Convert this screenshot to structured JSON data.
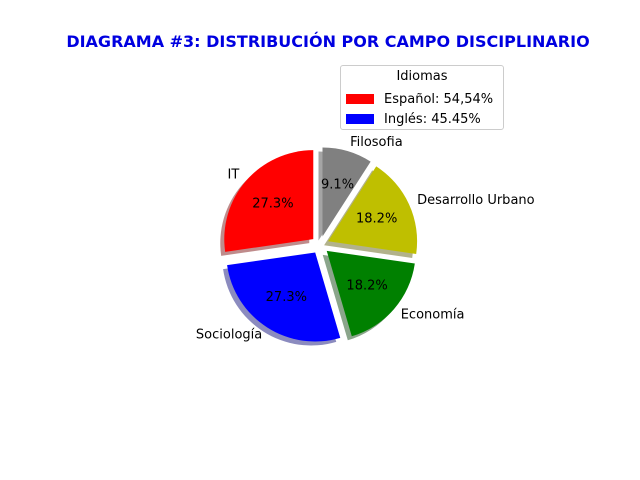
{
  "chart_data": {
    "type": "pie",
    "title": "DIAGRAMA #3: DISTRIBUCIÓN POR CAMPO DISCIPLINARIO",
    "title_color": "#0000e0",
    "start_angle_deg": 90,
    "direction": "counterclockwise",
    "shadow": true,
    "slices": [
      {
        "label": "IT",
        "value": 27.3,
        "pct_label": "27.3%",
        "color": "#ff0000",
        "explode": 0.1
      },
      {
        "label": "Sociología",
        "value": 27.3,
        "pct_label": "27.3%",
        "color": "#0000ff",
        "explode": 0.1
      },
      {
        "label": "Economía",
        "value": 18.2,
        "pct_label": "18.2%",
        "color": "#008000",
        "explode": 0.1
      },
      {
        "label": "Desarrollo Urbano",
        "value": 18.2,
        "pct_label": "18.2%",
        "color": "#bfbf00",
        "explode": 0.1
      },
      {
        "label": "Filosofia",
        "value": 9.1,
        "pct_label": "9.1%",
        "color": "#808080",
        "explode": 0.1
      }
    ],
    "legend": {
      "title": "Idiomas",
      "placement": "upper-right",
      "entries": [
        {
          "label": "Español: 54,54%",
          "color": "#ff0000"
        },
        {
          "label": "Inglés: 45.45%",
          "color": "#0000ff"
        }
      ]
    }
  }
}
